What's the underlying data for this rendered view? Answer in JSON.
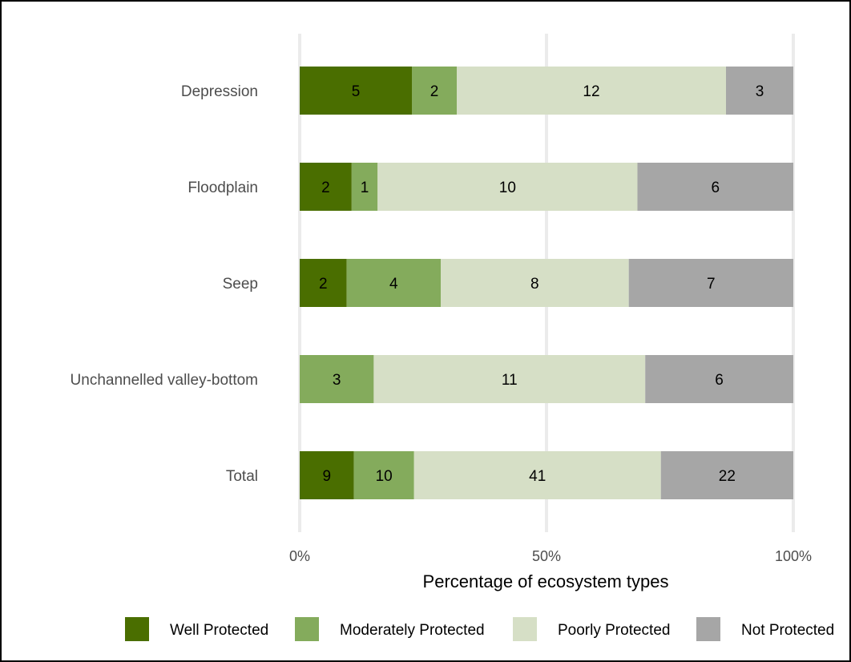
{
  "chart_data": {
    "type": "bar",
    "orientation": "horizontal",
    "stacked": "percent",
    "categories": [
      "Depression",
      "Floodplain",
      "Seep",
      "Unchannelled valley-bottom",
      "Total"
    ],
    "series": [
      {
        "name": "Well Protected",
        "values": [
          5,
          2,
          2,
          0,
          9
        ],
        "color": "#4a6e00"
      },
      {
        "name": "Moderately Protected",
        "values": [
          2,
          1,
          4,
          3,
          10
        ],
        "color": "#84ab5c"
      },
      {
        "name": "Poorly Protected",
        "values": [
          12,
          10,
          8,
          11,
          41
        ],
        "color": "#d6dfc6"
      },
      {
        "name": "Not Protected",
        "values": [
          3,
          6,
          7,
          6,
          22
        ],
        "color": "#a6a6a6"
      }
    ],
    "xlabel": "Percentage of ecosystem types",
    "ylabel": "",
    "xticks": [
      "0%",
      "50%",
      "100%"
    ],
    "xlim": [
      0,
      100
    ],
    "grid": "vertical",
    "legend_position": "bottom"
  }
}
